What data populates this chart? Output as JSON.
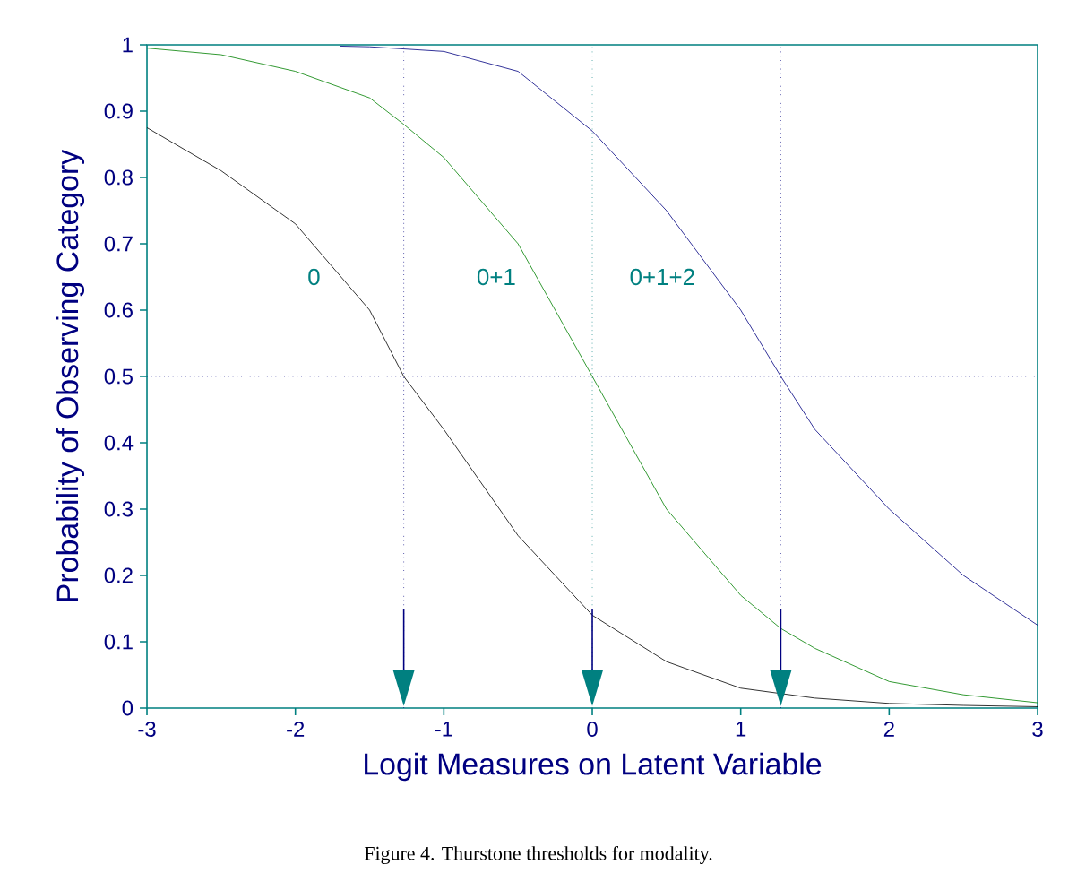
{
  "chart_data": {
    "type": "line",
    "xlabel": "Logit Measures on Latent Variable",
    "ylabel": "Probability of Observing Category",
    "x": [
      -3,
      -2.5,
      -2,
      -1.5,
      -1.27,
      -1,
      -0.5,
      0,
      0.5,
      1,
      1.27,
      1.5,
      2,
      2.5,
      3
    ],
    "series": [
      {
        "name": "0",
        "color": "#000000",
        "x": [
          -3,
          -2.5,
          -2,
          -1.5,
          -1.27,
          -1,
          -0.5,
          0,
          0.5,
          1,
          1.5,
          2,
          2.5,
          3
        ],
        "values": [
          0.875,
          0.81,
          0.73,
          0.6,
          0.5,
          0.42,
          0.26,
          0.14,
          0.07,
          0.03,
          0.015,
          0.007,
          0.004,
          0.002
        ]
      },
      {
        "name": "0+1",
        "color": "#008000",
        "values": [
          0.995,
          0.985,
          0.96,
          0.92,
          0.88,
          0.83,
          0.7,
          0.5,
          0.3,
          0.17,
          0.12,
          0.09,
          0.04,
          0.02,
          0.008
        ]
      },
      {
        "name": "0+1+2",
        "color": "#000080",
        "x": [
          -1.7,
          -1.5,
          -1,
          -0.5,
          0,
          0.5,
          1,
          1.27,
          1.5,
          2,
          2.5,
          3
        ],
        "values": [
          0.998,
          0.997,
          0.99,
          0.96,
          0.87,
          0.75,
          0.6,
          0.5,
          0.42,
          0.3,
          0.2,
          0.125
        ]
      }
    ],
    "xlim": [
      -3,
      3
    ],
    "ylim": [
      0,
      1
    ],
    "xticks": [
      -3,
      -2,
      -1,
      0,
      1,
      2,
      3
    ],
    "yticks": [
      0,
      0.1,
      0.2,
      0.3,
      0.4,
      0.5,
      0.6,
      0.7,
      0.8,
      0.9,
      1
    ],
    "grid": false,
    "marker": "none",
    "line_style": "solid",
    "ref_lines": [
      {
        "axis": "y",
        "value": 0.5,
        "color": "#000080",
        "line_style": "dotted"
      },
      {
        "axis": "x",
        "value": -1.27,
        "color": "#000080",
        "line_style": "dotted"
      },
      {
        "axis": "x",
        "value": 0,
        "color": "#008080",
        "line_style": "dotted"
      },
      {
        "axis": "x",
        "value": 1.27,
        "color": "#000080",
        "line_style": "dotted"
      }
    ],
    "annotations": [
      "Figure 4. Thurstone thresholds for modality."
    ]
  }
}
